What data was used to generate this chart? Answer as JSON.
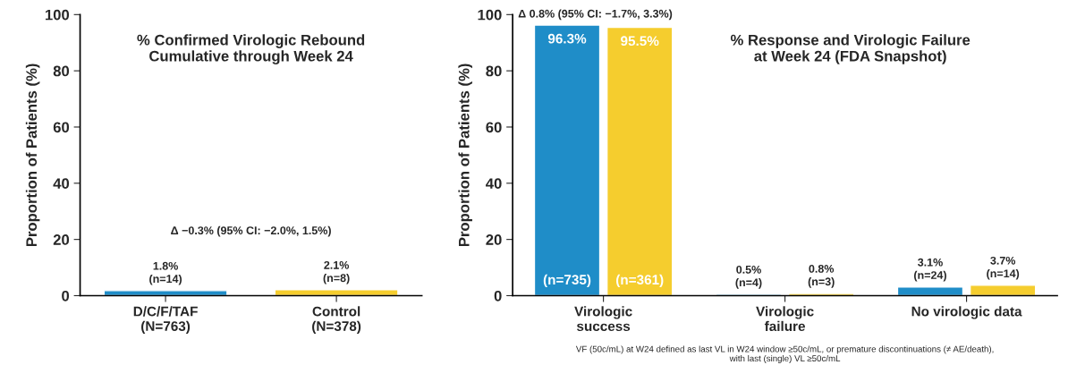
{
  "chart_data": [
    {
      "type": "bar",
      "title": "% Confirmed Virologic Rebound\nCumulative through Week 24",
      "ylabel": "Proportion of Patients (%)",
      "categories": [
        "D/C/F/TAF\n(N=763)",
        "Control\n(N=378)"
      ],
      "series": [
        {
          "color": "#1f8dc8",
          "values": [
            1.8,
            null
          ],
          "value_labels": [
            "1.8%\n(n=14)",
            null
          ]
        },
        {
          "color": "#f5cd2e",
          "values": [
            null,
            2.1
          ],
          "value_labels": [
            null,
            "2.1%\n(n=8)"
          ]
        }
      ],
      "ylim": [
        0,
        100
      ],
      "yticks": [
        0,
        20,
        40,
        60,
        80,
        100
      ],
      "grid": false,
      "legend": false,
      "annotations": [
        "Δ −0.3% (95% CI: −2.0%, 1.5%)"
      ]
    },
    {
      "type": "bar",
      "title": "% Response and Virologic Failure\nat Week 24 (FDA Snapshot)",
      "ylabel": "Proportion of Patients (%)",
      "categories": [
        "Virologic\nsuccess",
        "Virologic\nfailure",
        "No virologic data"
      ],
      "series": [
        {
          "color": "#1f8dc8",
          "values": [
            96.3,
            0.5,
            3.1
          ],
          "value_labels": [
            "96.3%\n(n=735)",
            "0.5%\n(n=4)",
            "3.1%\n(n=24)"
          ]
        },
        {
          "color": "#f5cd2e",
          "values": [
            95.5,
            0.8,
            3.7
          ],
          "value_labels": [
            "95.5%\n(n=361)",
            "0.8%\n(n=3)",
            "3.7%\n(n=14)"
          ]
        }
      ],
      "ylim": [
        0,
        100
      ],
      "yticks": [
        0,
        20,
        40,
        60,
        80,
        100
      ],
      "grid": false,
      "legend": false,
      "annotations": [
        "Δ 0.8% (95% CI: −1.7%, 3.3%)",
        "VF (50c/mL) at W24 defined as last VL in W24 window ≥50c/mL, or premature discontinuations (≠ AE/death),\nwith last (single) VL ≥50c/mL"
      ]
    }
  ]
}
